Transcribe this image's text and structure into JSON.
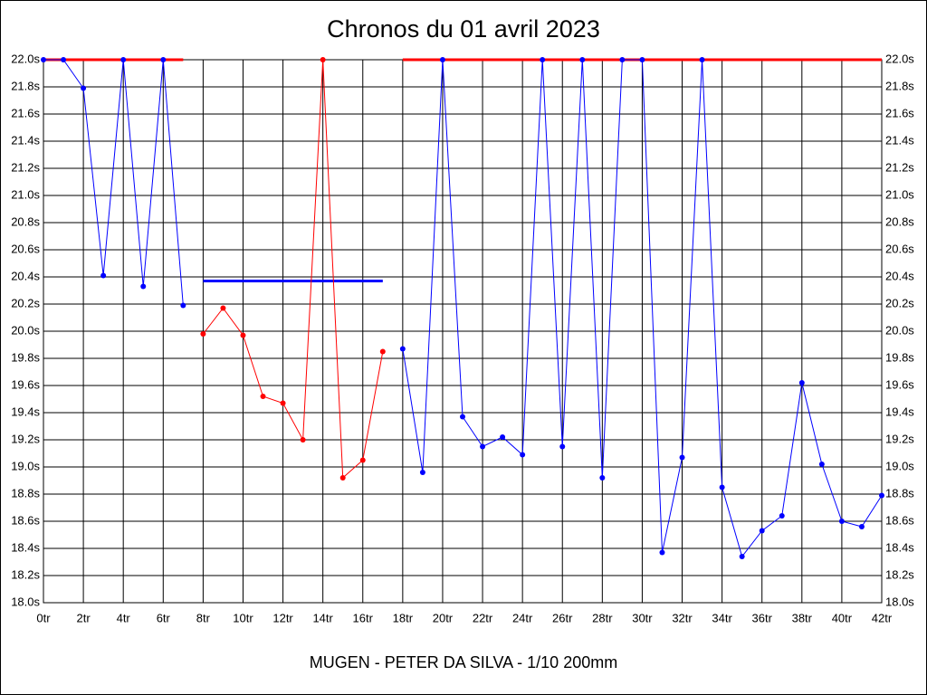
{
  "chart_data": {
    "type": "line",
    "title": "Chronos du 01 avril 2023",
    "footer": "MUGEN - PETER DA SILVA - 1/10 200mm",
    "x": [
      0,
      1,
      2,
      3,
      4,
      5,
      6,
      7,
      8,
      9,
      10,
      11,
      12,
      13,
      14,
      15,
      16,
      17,
      18,
      19,
      20,
      21,
      22,
      23,
      24,
      25,
      26,
      27,
      28,
      29,
      30,
      31,
      32,
      33,
      34,
      35,
      36,
      37,
      38,
      39,
      40,
      41,
      42
    ],
    "series": [
      {
        "color": "#0000ff",
        "values": [
          22.0,
          22.0,
          21.79,
          20.41,
          22.0,
          20.33,
          22.0,
          20.19,
          null,
          null,
          null,
          null,
          null,
          null,
          null,
          null,
          null,
          null,
          19.87,
          18.96,
          22.0,
          19.37,
          19.15,
          19.22,
          19.09,
          22.0,
          19.15,
          22.0,
          18.92,
          22.0,
          22.0,
          18.37,
          19.07,
          22.0,
          18.85,
          18.34,
          18.53,
          18.64,
          19.62,
          19.02,
          18.6,
          18.56,
          18.79
        ]
      },
      {
        "color": "#ff0000",
        "values": [
          null,
          null,
          null,
          null,
          null,
          null,
          null,
          null,
          19.98,
          20.17,
          19.97,
          19.52,
          19.47,
          19.2,
          22.0,
          18.92,
          19.05,
          19.85,
          null,
          null,
          null,
          null,
          null,
          null,
          null,
          null,
          null,
          null,
          null,
          null,
          null,
          null,
          null,
          null,
          null,
          null,
          null,
          null,
          null,
          null,
          null,
          null,
          null
        ]
      }
    ],
    "reference_lines": [
      {
        "color": "#ff0000",
        "value": 22.0,
        "x": [
          0,
          7
        ]
      },
      {
        "color": "#0000ff",
        "value": 20.37,
        "x": [
          8,
          17
        ]
      },
      {
        "color": "#ff0000",
        "value": 22.0,
        "x": [
          18,
          42
        ]
      }
    ],
    "xlim": [
      0,
      42
    ],
    "xticks": [
      {
        "value": 0,
        "label": "0tr"
      },
      {
        "value": 2,
        "label": "2tr"
      },
      {
        "value": 4,
        "label": "4tr"
      },
      {
        "value": 6,
        "label": "6tr"
      },
      {
        "value": 8,
        "label": "8tr"
      },
      {
        "value": 10,
        "label": "10tr"
      },
      {
        "value": 12,
        "label": "12tr"
      },
      {
        "value": 14,
        "label": "14tr"
      },
      {
        "value": 16,
        "label": "16tr"
      },
      {
        "value": 18,
        "label": "18tr"
      },
      {
        "value": 20,
        "label": "20tr"
      },
      {
        "value": 22,
        "label": "22tr"
      },
      {
        "value": 24,
        "label": "24tr"
      },
      {
        "value": 26,
        "label": "26tr"
      },
      {
        "value": 28,
        "label": "28tr"
      },
      {
        "value": 30,
        "label": "30tr"
      },
      {
        "value": 32,
        "label": "32tr"
      },
      {
        "value": 34,
        "label": "34tr"
      },
      {
        "value": 36,
        "label": "36tr"
      },
      {
        "value": 38,
        "label": "38tr"
      },
      {
        "value": 40,
        "label": "40tr"
      },
      {
        "value": 42,
        "label": "42tr"
      }
    ],
    "ylim": [
      18.0,
      22.0
    ],
    "yticks": [
      {
        "value": 18.0,
        "label": "18.0s"
      },
      {
        "value": 18.2,
        "label": "18.2s"
      },
      {
        "value": 18.4,
        "label": "18.4s"
      },
      {
        "value": 18.6,
        "label": "18.6s"
      },
      {
        "value": 18.8,
        "label": "18.8s"
      },
      {
        "value": 19.0,
        "label": "19.0s"
      },
      {
        "value": 19.2,
        "label": "19.2s"
      },
      {
        "value": 19.4,
        "label": "19.4s"
      },
      {
        "value": 19.6,
        "label": "19.6s"
      },
      {
        "value": 19.8,
        "label": "19.8s"
      },
      {
        "value": 20.0,
        "label": "20.0s"
      },
      {
        "value": 20.2,
        "label": "20.2s"
      },
      {
        "value": 20.4,
        "label": "20.4s"
      },
      {
        "value": 20.6,
        "label": "20.6s"
      },
      {
        "value": 20.8,
        "label": "20.8s"
      },
      {
        "value": 21.0,
        "label": "21.0s"
      },
      {
        "value": 21.2,
        "label": "21.2s"
      },
      {
        "value": 21.4,
        "label": "21.4s"
      },
      {
        "value": 21.6,
        "label": "21.6s"
      },
      {
        "value": 21.8,
        "label": "21.8s"
      },
      {
        "value": 22.0,
        "label": "22.0s"
      }
    ],
    "grid": true
  }
}
